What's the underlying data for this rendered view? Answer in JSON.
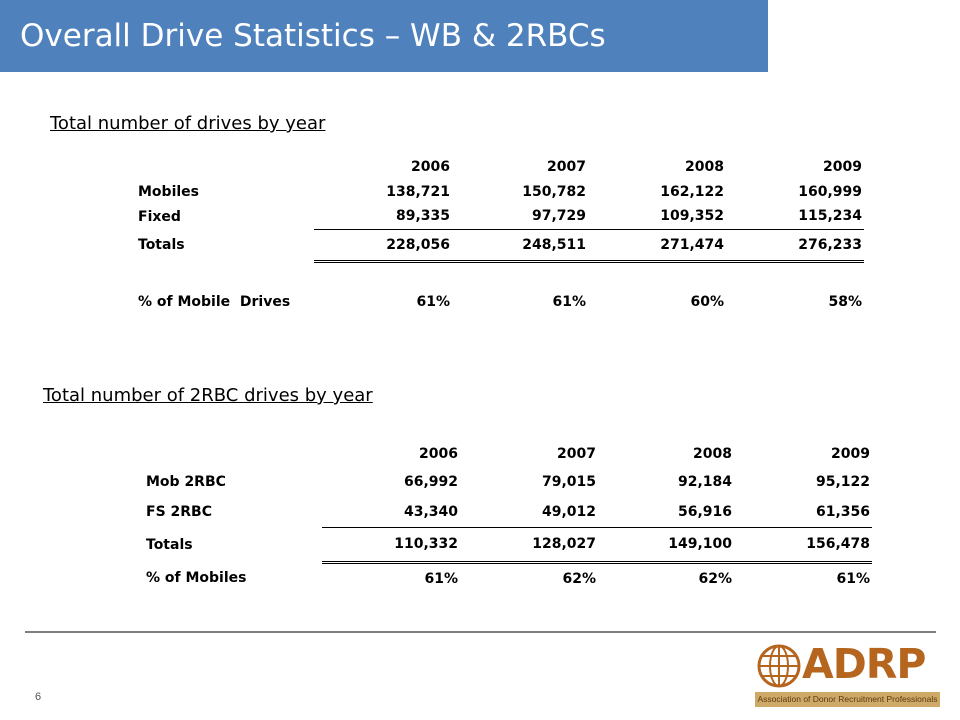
{
  "header": {
    "title": "Overall Drive Statistics – WB & 2RBCs"
  },
  "table1": {
    "title": "Total number of drives by year",
    "years": [
      "2006",
      "2007",
      "2008",
      "2009"
    ],
    "rows": [
      {
        "label": "Mobiles",
        "values": [
          "138,721",
          "150,782",
          "162,122",
          "160,999"
        ]
      },
      {
        "label": "Fixed",
        "values": [
          "89,335",
          "97,729",
          "109,352",
          "115,234"
        ]
      },
      {
        "label": "Totals",
        "values": [
          "228,056",
          "248,511",
          "271,474",
          "276,233"
        ]
      },
      {
        "label": "% of Mobile  Drives",
        "values": [
          "61%",
          "61%",
          "60%",
          "58%"
        ]
      }
    ]
  },
  "table2": {
    "title": "Total number of 2RBC drives by year",
    "years": [
      "2006",
      "2007",
      "2008",
      "2009"
    ],
    "rows": [
      {
        "label": "Mob 2RBC",
        "values": [
          "66,992",
          "79,015",
          "92,184",
          "95,122"
        ]
      },
      {
        "label": "FS 2RBC",
        "values": [
          "43,340",
          "49,012",
          "56,916",
          "61,356"
        ]
      },
      {
        "label": "Totals",
        "values": [
          "110,332",
          "128,027",
          "149,100",
          "156,478"
        ]
      },
      {
        "label": "% of Mobiles",
        "values": [
          "61%",
          "62%",
          "62%",
          "61%"
        ]
      }
    ]
  },
  "footer": {
    "page_number": "6",
    "logo_text": "ADRP",
    "logo_tagline": "Association of Donor Recruitment Professionals",
    "logo_icon": "globe-icon"
  }
}
